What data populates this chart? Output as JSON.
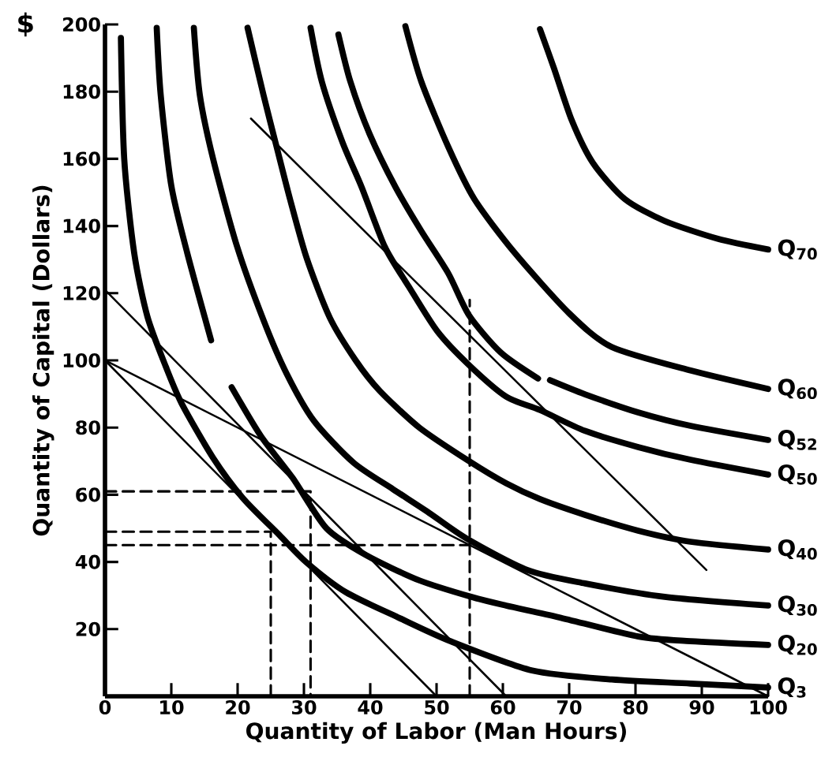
{
  "chart_data": {
    "type": "line",
    "xlabel": "Quantity of Labor  (Man Hours)",
    "ylabel": "Quantity of Capital  (Dollars)",
    "annotations": [
      "$"
    ],
    "xlim": [
      0,
      100
    ],
    "ylim": [
      0,
      200
    ],
    "xticks": [
      0,
      10,
      20,
      30,
      40,
      50,
      60,
      70,
      80,
      90,
      100
    ],
    "yticks": [
      20,
      40,
      60,
      80,
      100,
      120,
      140,
      160,
      180,
      200
    ],
    "grid": false,
    "series": [
      {
        "name": "Q$_{3}$",
        "color": "#000000",
        "x": [
          2.4,
          2.9,
          4.4,
          6.4,
          9.2,
          11.6,
          16.3,
          20.8,
          26.3,
          30.3,
          36.3,
          44.2,
          52.1,
          64.4,
          76.4,
          88.3,
          100
        ],
        "values": [
          196,
          160,
          132,
          113,
          98,
          87,
          71,
          59,
          48,
          40,
          31,
          23.5,
          16.4,
          7.7,
          5,
          3.8,
          2.6
        ]
      },
      {
        "name": "Q$_{20}$",
        "color": "#000000",
        "x": [
          7.8,
          8.4,
          10,
          12.4,
          16,
          17.5,
          19.1,
          23.5,
          28.3,
          33.4,
          39.4,
          47.4,
          55.4,
          60.5,
          68.5,
          80.4,
          88.3,
          100
        ],
        "values": [
          199,
          179,
          152,
          132,
          106,
          null,
          92,
          77.5,
          65,
          50,
          42,
          34.5,
          29.5,
          27,
          23.5,
          17.8,
          16.4,
          15.3
        ]
      },
      {
        "name": "Q$_{30}$",
        "color": "#000000",
        "x": [
          13.4,
          14.3,
          16.3,
          19.9,
          23.9,
          27.4,
          31.5,
          37.5,
          43.4,
          48.6,
          54.5,
          63.7,
          72.4,
          84.4,
          100
        ],
        "values": [
          199,
          179,
          160,
          134,
          112,
          96,
          82,
          69.5,
          61.7,
          55,
          47,
          37.6,
          33.6,
          29.6,
          27
        ]
      },
      {
        "name": "Q$_{40}$",
        "color": "#000000",
        "x": [
          21.5,
          23.9,
          25.9,
          27.9,
          30.4,
          33.9,
          37.8,
          41.4,
          47.4,
          54.9,
          60.5,
          65.6,
          72.4,
          80.4,
          88.3,
          100
        ],
        "values": [
          199,
          179,
          163.4,
          148,
          130.5,
          112.7,
          100,
          91,
          80,
          70,
          63.4,
          58.7,
          54,
          49.3,
          46,
          43.7
        ]
      },
      {
        "name": "Q$_{50}$",
        "color": "#000000",
        "x": [
          31,
          32.7,
          35.8,
          38.7,
          42.2,
          45.8,
          50.1,
          54.9,
          60.5,
          65.6,
          72.4,
          80.4,
          88.3,
          100
        ],
        "values": [
          199,
          183,
          165,
          151.6,
          133.8,
          122,
          108.7,
          98.6,
          89.2,
          85.2,
          79,
          74.2,
          70.4,
          66
        ]
      },
      {
        "name": "Q$_{52}$",
        "color": "#000000",
        "x": [
          35.2,
          37,
          39.9,
          43.8,
          47.7,
          51.8,
          54.9,
          59.7,
          65.3,
          66.2,
          67.1,
          72.4,
          80.4,
          88.3,
          100
        ],
        "values": [
          197,
          183,
          167.4,
          151.6,
          138.5,
          125.8,
          113.4,
          102.3,
          94.6,
          null,
          94.1,
          89.9,
          84.5,
          80.5,
          76.3
        ]
      },
      {
        "name": "Q$_{60}$",
        "color": "#000000",
        "x": [
          45.3,
          47.7,
          51.8,
          55.7,
          61.7,
          70,
          76.4,
          88.3,
          100
        ],
        "values": [
          199.5,
          183,
          163.4,
          148,
          132.2,
          114,
          104,
          97,
          91.5
        ]
      },
      {
        "name": "Q$_{70}$",
        "color": "#000000",
        "x": [
          65.6,
          67.7,
          70.4,
          73.6,
          78.4,
          84.4,
          92.4,
          100
        ],
        "values": [
          198.6,
          187,
          171.4,
          158.7,
          148,
          141.5,
          136.2,
          133
        ]
      },
      {
        "color": "#000000",
        "x": [
          0,
          50
        ],
        "values": [
          100,
          0
        ]
      },
      {
        "color": "#000000",
        "x": [
          0,
          60.5
        ],
        "values": [
          121,
          0
        ]
      },
      {
        "color": "#000000",
        "x": [
          0,
          100
        ],
        "values": [
          100,
          0
        ]
      },
      {
        "color": "#000000",
        "x": [
          22,
          90.7
        ],
        "values": [
          172,
          37.6
        ]
      },
      {
        "color": "#000000",
        "line_style": "dashed",
        "x": [
          0,
          31,
          31
        ],
        "values": [
          61,
          61,
          0
        ]
      },
      {
        "color": "#000000",
        "line_style": "dashed",
        "x": [
          0,
          25,
          25
        ],
        "values": [
          49,
          49,
          0
        ]
      },
      {
        "color": "#000000",
        "line_style": "dashed",
        "x": [
          0,
          55
        ],
        "values": [
          45,
          45
        ]
      },
      {
        "color": "#000000",
        "line_style": "dashed",
        "x": [
          55,
          55
        ],
        "values": [
          0,
          118
        ]
      }
    ]
  }
}
